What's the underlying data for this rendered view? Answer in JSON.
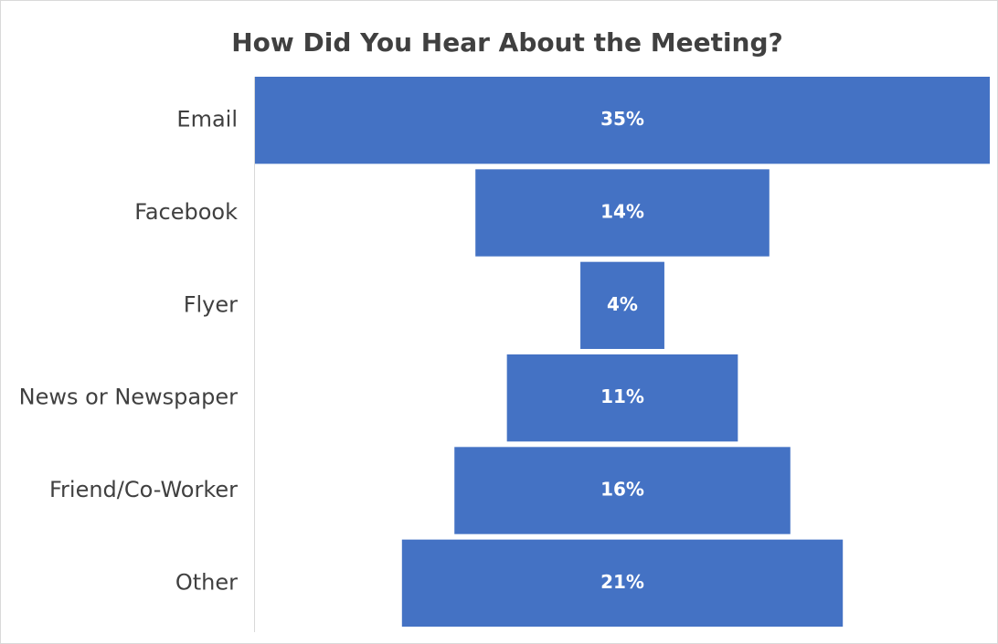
{
  "chart_data": {
    "type": "funnel",
    "title": "How Did You Hear About the Meeting?",
    "categories": [
      "Email",
      "Facebook",
      "Flyer",
      "News or Newspaper",
      "Friend/Co-Worker",
      "Other"
    ],
    "values": [
      35,
      14,
      4,
      11,
      16,
      21
    ],
    "value_labels": [
      "35%",
      "14%",
      "4%",
      "11%",
      "16%",
      "21%"
    ],
    "color": "#4472c4"
  }
}
